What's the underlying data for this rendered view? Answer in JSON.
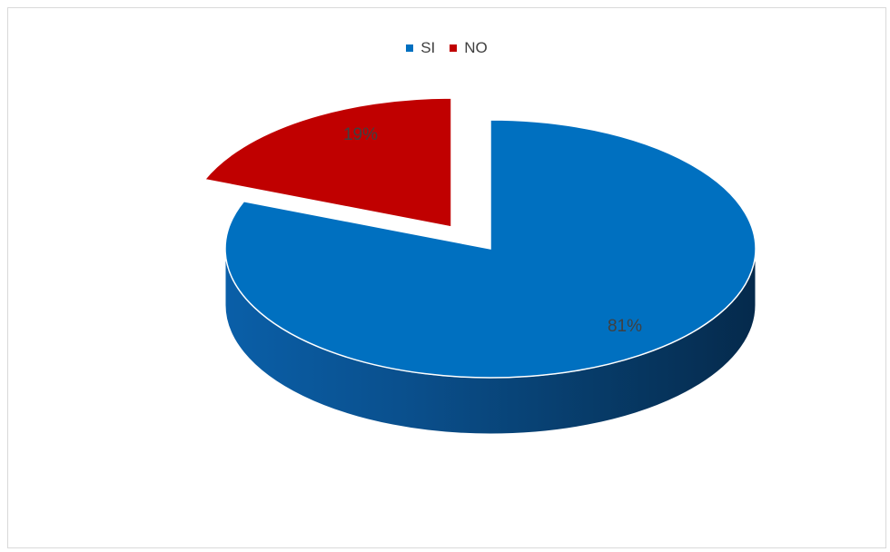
{
  "chart_data": {
    "type": "pie",
    "style": "3d-exploded",
    "categories": [
      "SI",
      "NO"
    ],
    "values": [
      81,
      19
    ],
    "data_labels": [
      "81%",
      "19%"
    ],
    "colors": {
      "SI": "#0070c0",
      "NO": "#c00000"
    },
    "legend": {
      "placement": "top",
      "entries": [
        "SI",
        "NO"
      ]
    },
    "title": ""
  }
}
